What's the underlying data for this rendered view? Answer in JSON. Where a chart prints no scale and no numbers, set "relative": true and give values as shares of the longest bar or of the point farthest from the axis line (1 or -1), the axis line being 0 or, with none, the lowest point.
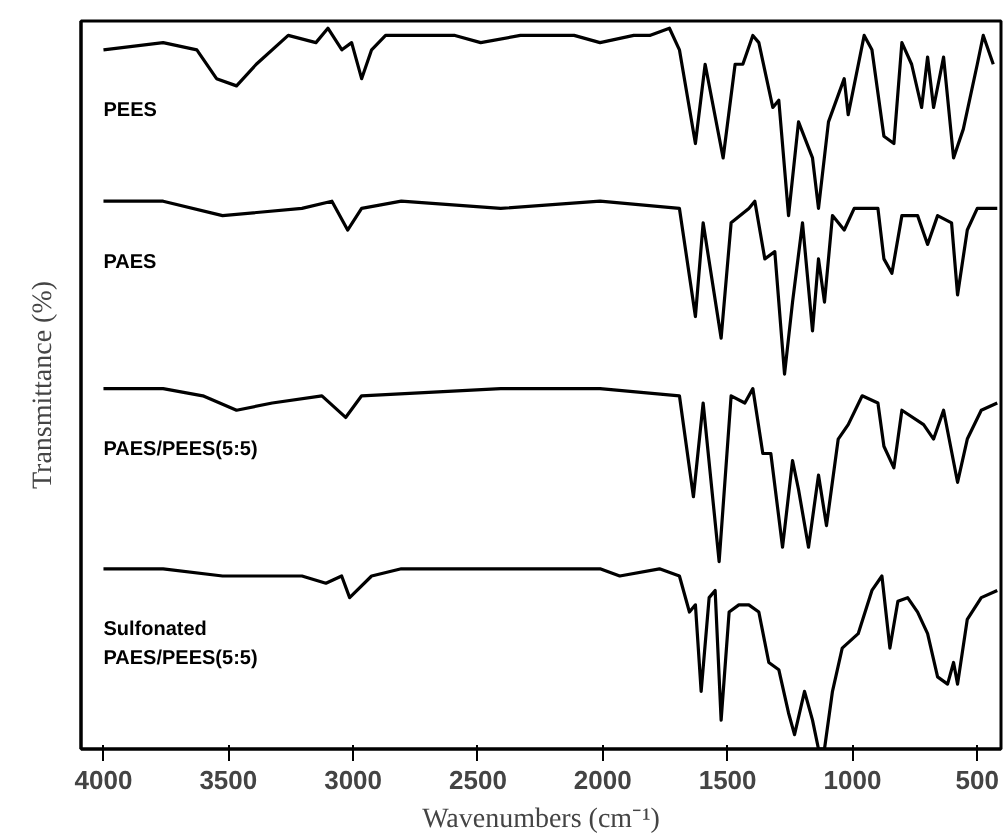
{
  "chart_data": {
    "type": "line",
    "relative": true,
    "xlabel": "Wavenumbers (cm⁻¹)",
    "ylabel": "Transmittance (%)",
    "xlim": [
      4090,
      405
    ],
    "xticks": [
      4000,
      3500,
      3000,
      2500,
      2000,
      1500,
      1000,
      500
    ],
    "ylim": [
      0,
      1.01
    ],
    "tick_labels": "x",
    "grid": false,
    "marker": "none",
    "line_style": "solid",
    "series": [
      {
        "name": "PEES",
        "color": "#000000",
        "x": [
          4000,
          3761,
          3626,
          3547,
          3467,
          3388,
          3260,
          3149,
          3101,
          3045,
          3006,
          2966,
          2926,
          2870,
          2592,
          2489,
          2330,
          2115,
          2011,
          1876,
          1812,
          1733,
          1693,
          1629,
          1590,
          1518,
          1470,
          1439,
          1399,
          1375,
          1319,
          1295,
          1256,
          1216,
          1160,
          1136,
          1096,
          1033,
          1017,
          953,
          922,
          874,
          834,
          802,
          763,
          723,
          699,
          675,
          635,
          595,
          556,
          500,
          476,
          436
        ],
        "values": [
          0.97,
          0.98,
          0.97,
          0.93,
          0.92,
          0.95,
          0.99,
          0.98,
          1.0,
          0.97,
          0.98,
          0.93,
          0.97,
          0.99,
          0.99,
          0.98,
          0.99,
          0.99,
          0.98,
          0.99,
          0.99,
          1.0,
          0.97,
          0.84,
          0.95,
          0.82,
          0.95,
          0.95,
          0.99,
          0.98,
          0.89,
          0.9,
          0.74,
          0.87,
          0.82,
          0.75,
          0.87,
          0.93,
          0.88,
          0.99,
          0.97,
          0.85,
          0.84,
          0.98,
          0.95,
          0.89,
          0.96,
          0.89,
          0.96,
          0.82,
          0.86,
          0.95,
          0.99,
          0.95
        ]
      },
      {
        "name": "PAES",
        "color": "#000000",
        "x": [
          4000,
          3761,
          3523,
          3205,
          3085,
          3022,
          2966,
          2807,
          2409,
          2011,
          1693,
          1629,
          1598,
          1526,
          1486,
          1415,
          1391,
          1351,
          1311,
          1272,
          1240,
          1200,
          1160,
          1136,
          1112,
          1080,
          1033,
          993,
          898,
          874,
          842,
          802,
          739,
          699,
          659,
          603,
          579,
          540,
          500,
          420
        ],
        "values": [
          0.76,
          0.76,
          0.74,
          0.75,
          0.76,
          0.72,
          0.75,
          0.76,
          0.75,
          0.76,
          0.75,
          0.6,
          0.73,
          0.57,
          0.73,
          0.75,
          0.76,
          0.68,
          0.69,
          0.52,
          0.62,
          0.73,
          0.58,
          0.68,
          0.62,
          0.74,
          0.72,
          0.75,
          0.75,
          0.68,
          0.66,
          0.74,
          0.74,
          0.7,
          0.74,
          0.73,
          0.63,
          0.72,
          0.75,
          0.75
        ]
      },
      {
        "name": "PAES/PEES(5:5)",
        "color": "#000000",
        "x": [
          4000,
          3761,
          3602,
          3467,
          3324,
          3125,
          3030,
          2966,
          2409,
          2011,
          1693,
          1637,
          1598,
          1534,
          1486,
          1431,
          1399,
          1359,
          1327,
          1280,
          1240,
          1216,
          1176,
          1136,
          1104,
          1057,
          1017,
          961,
          898,
          874,
          834,
          802,
          715,
          675,
          635,
          579,
          540,
          484,
          420
        ],
        "values": [
          0.5,
          0.5,
          0.49,
          0.47,
          0.48,
          0.49,
          0.46,
          0.49,
          0.5,
          0.5,
          0.49,
          0.35,
          0.48,
          0.26,
          0.49,
          0.48,
          0.5,
          0.41,
          0.41,
          0.28,
          0.4,
          0.36,
          0.28,
          0.38,
          0.31,
          0.43,
          0.45,
          0.49,
          0.48,
          0.42,
          0.39,
          0.47,
          0.45,
          0.43,
          0.47,
          0.37,
          0.43,
          0.47,
          0.48
        ]
      },
      {
        "name": "Sulfonated\nPAES/PEES(5:5)",
        "color": "#000000",
        "x": [
          4000,
          3761,
          3523,
          3205,
          3109,
          3046,
          3014,
          2926,
          2807,
          2011,
          1932,
          1773,
          1693,
          1653,
          1629,
          1606,
          1574,
          1550,
          1526,
          1494,
          1455,
          1415,
          1375,
          1335,
          1295,
          1256,
          1232,
          1192,
          1160,
          1136,
          1112,
          1080,
          1041,
          977,
          922,
          882,
          850,
          818,
          779,
          739,
          699,
          659,
          619,
          595,
          579,
          540,
          484,
          420
        ],
        "values": [
          0.25,
          0.25,
          0.24,
          0.24,
          0.23,
          0.24,
          0.21,
          0.24,
          0.25,
          0.25,
          0.24,
          0.25,
          0.24,
          0.19,
          0.2,
          0.08,
          0.21,
          0.22,
          0.04,
          0.19,
          0.2,
          0.2,
          0.19,
          0.12,
          0.11,
          0.05,
          0.02,
          0.08,
          0.04,
          0.0,
          0.0,
          0.08,
          0.14,
          0.16,
          0.22,
          0.24,
          0.14,
          0.205,
          0.21,
          0.19,
          0.16,
          0.1,
          0.09,
          0.12,
          0.09,
          0.18,
          0.21,
          0.22
        ]
      }
    ]
  }
}
